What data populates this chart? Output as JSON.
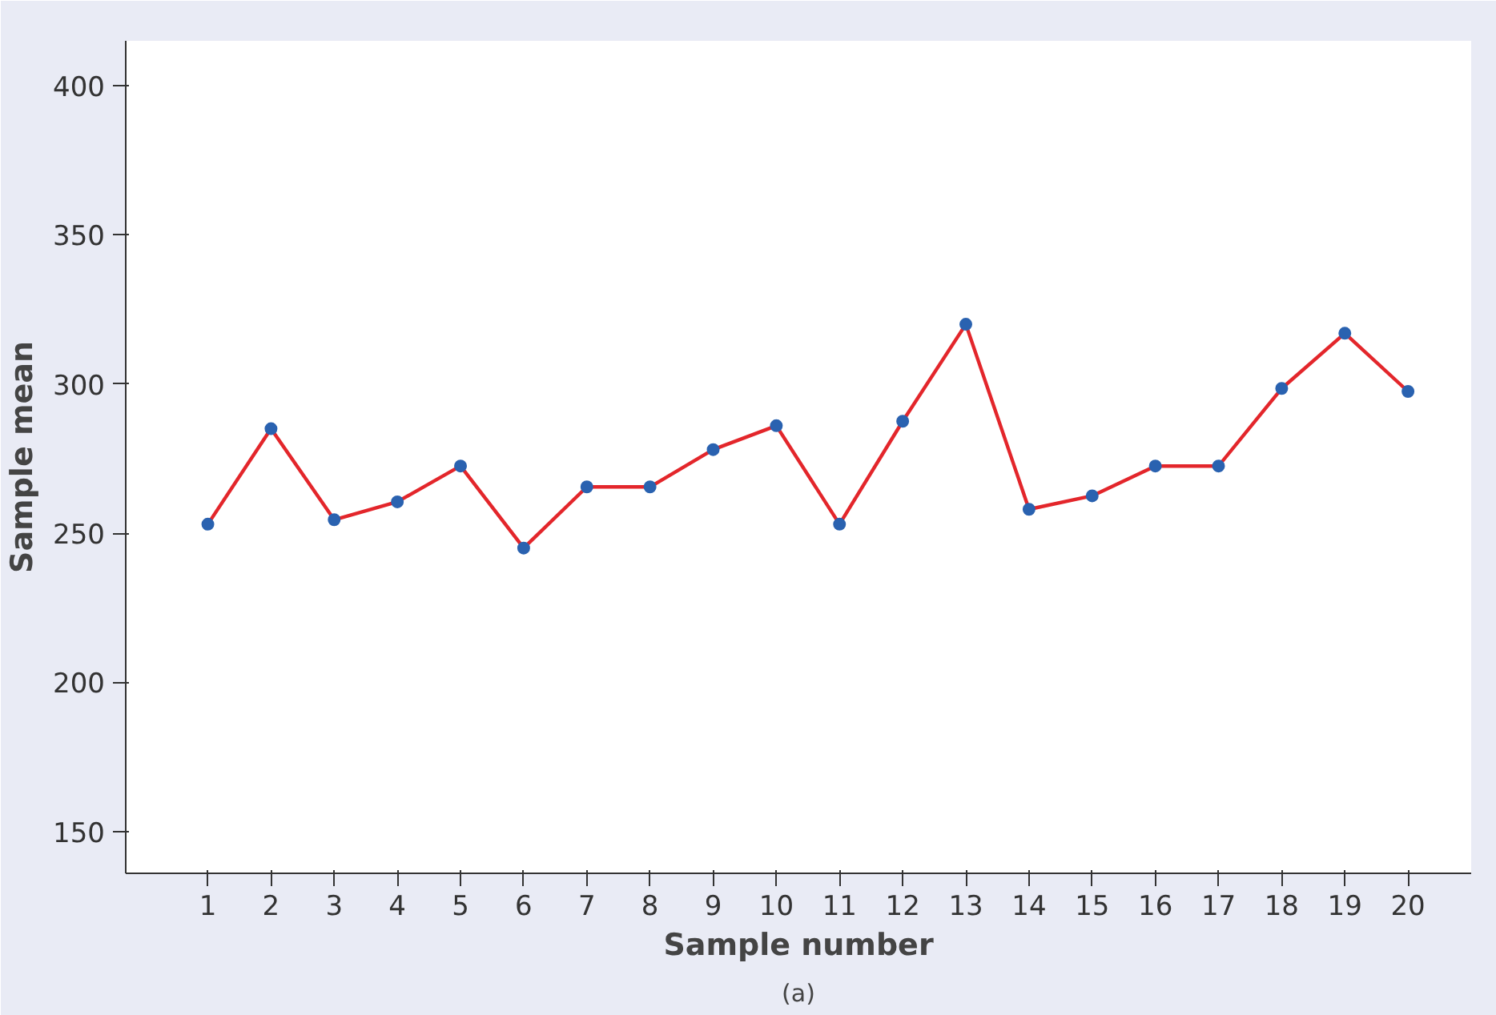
{
  "chart_data": {
    "type": "line",
    "xlabel": "Sample number",
    "ylabel": "Sample mean",
    "annotations": [
      "(a)"
    ],
    "x": [
      1,
      2,
      3,
      4,
      5,
      6,
      7,
      8,
      9,
      10,
      11,
      12,
      13,
      14,
      15,
      16,
      17,
      18,
      19,
      20
    ],
    "series": [
      {
        "color": "#e3262b",
        "values": [
          253,
          285,
          254.5,
          260.5,
          272.5,
          245,
          265.5,
          265.5,
          278,
          286,
          253,
          287.5,
          320,
          258,
          262.5,
          272.5,
          272.5,
          298.5,
          317,
          297.5
        ]
      }
    ],
    "xlim": [
      -0.3,
      21.0
    ],
    "ylim": [
      136,
      415
    ],
    "xticks": [
      1,
      2,
      3,
      4,
      5,
      6,
      7,
      8,
      9,
      10,
      11,
      12,
      13,
      14,
      15,
      16,
      17,
      18,
      19,
      20
    ],
    "yticks": [
      150,
      200,
      250,
      300,
      350,
      400
    ],
    "marker": "circle",
    "line_style": "solid",
    "grid": false
  }
}
